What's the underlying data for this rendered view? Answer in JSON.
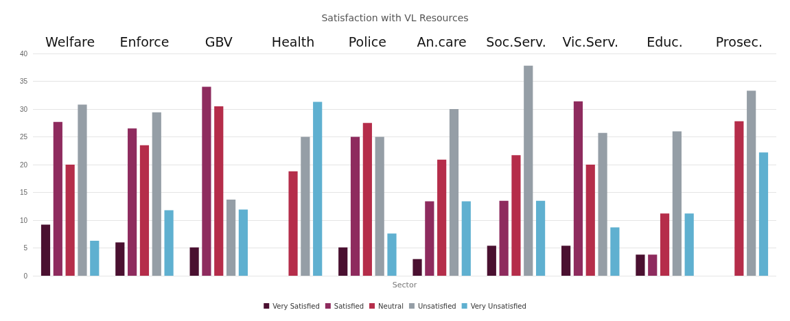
{
  "chart_data": {
    "type": "bar",
    "title": "Satisfaction with VL Resources",
    "xlabel": "Sector",
    "categories": [
      "Welfare",
      "Enforce",
      "GBV",
      "Health",
      "Police",
      "An.care",
      "Soc.Serv.",
      "Vic.Serv.",
      "Educ.",
      "Prosec."
    ],
    "series": [
      {
        "name": "Very Satisfied",
        "color": "#4a1030",
        "values": [
          9.2,
          6,
          5.1,
          0,
          5.1,
          3,
          5.4,
          5.4,
          3.8,
          0
        ]
      },
      {
        "name": "Satisfied",
        "color": "#8e2b5e",
        "values": [
          27.7,
          26.5,
          34,
          0,
          25,
          13.4,
          13.5,
          31.4,
          3.8,
          0
        ]
      },
      {
        "name": "Neutral",
        "color": "#b52d4a",
        "values": [
          20,
          23.5,
          30.5,
          18.8,
          27.5,
          20.9,
          21.7,
          20,
          11.2,
          27.8
        ]
      },
      {
        "name": "Unsatisfied",
        "color": "#959ea6",
        "values": [
          30.8,
          29.4,
          13.7,
          25,
          25,
          30,
          37.8,
          25.7,
          26,
          33.3
        ]
      },
      {
        "name": "Very Unsatisfied",
        "color": "#5fb0d0",
        "values": [
          6.3,
          11.8,
          11.9,
          31.3,
          7.6,
          13.4,
          13.5,
          8.7,
          11.2,
          22.2
        ]
      }
    ],
    "ylim": [
      0,
      40
    ],
    "yticks": [
      0,
      5,
      10,
      15,
      20,
      25,
      30,
      35,
      40
    ],
    "grid": "y",
    "legend": "bottom"
  }
}
